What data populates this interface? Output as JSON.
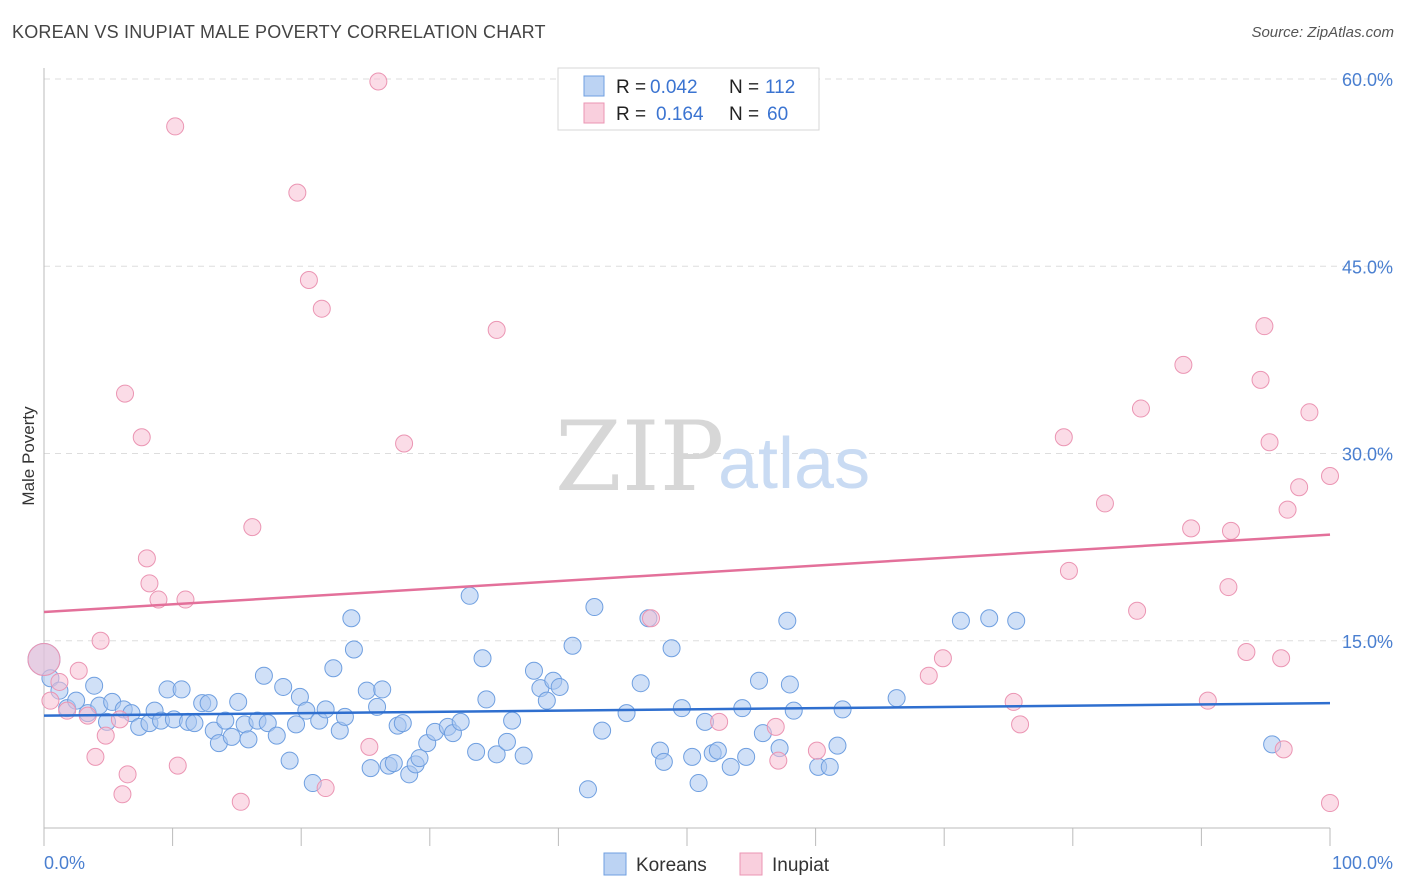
{
  "header": {
    "title": "KOREAN VS INUPIAT MALE POVERTY CORRELATION CHART",
    "source": "Source: ZipAtlas.com"
  },
  "watermark": {
    "zip": "ZIP",
    "atlas": "atlas"
  },
  "colors": {
    "koreans_fill": "#a9c6f0",
    "koreans_stroke": "#6f9fe0",
    "koreans_line": "#2f6fcf",
    "inupiat_fill": "#f7c0d3",
    "inupiat_stroke": "#eb95b3",
    "inupiat_line": "#e3709a",
    "tick_text": "#4a7fd0",
    "grid": "#dddddd"
  },
  "legend": {
    "rows": [
      {
        "r_label": "R =",
        "r_value": "0.042",
        "n_label": "N =",
        "n_value": "112"
      },
      {
        "r_label": "R =",
        "r_value": "0.164",
        "n_label": "N =",
        "n_value": "60"
      }
    ]
  },
  "bottom_legend": {
    "koreans": "Koreans",
    "inupiat": "Inupiat"
  },
  "chart_data": {
    "type": "scatter",
    "title": "KOREAN VS INUPIAT MALE POVERTY CORRELATION CHART",
    "xlabel": "",
    "ylabel": "Male Poverty",
    "xlim": [
      0,
      100
    ],
    "ylim": [
      0,
      60
    ],
    "x_tick_labels": {
      "min": "0.0%",
      "max": "100.0%"
    },
    "y_ticks": [
      15,
      30,
      45,
      60
    ],
    "y_tick_labels": [
      "15.0%",
      "30.0%",
      "45.0%",
      "60.0%"
    ],
    "grid": true,
    "series": [
      {
        "name": "Koreans",
        "R": 0.042,
        "N": 112,
        "trend": {
          "x": [
            0,
            100
          ],
          "y": [
            9.0,
            10.0
          ]
        },
        "points": [
          [
            0,
            13.5
          ],
          [
            0.5,
            12
          ],
          [
            1.2,
            11
          ],
          [
            1.8,
            9.6
          ],
          [
            2.5,
            10.2
          ],
          [
            3.4,
            9.2
          ],
          [
            3.9,
            11.4
          ],
          [
            4.3,
            9.8
          ],
          [
            4.9,
            8.5
          ],
          [
            5.3,
            10.1
          ],
          [
            6.2,
            9.5
          ],
          [
            6.8,
            9.2
          ],
          [
            7.4,
            8.1
          ],
          [
            8.2,
            8.4
          ],
          [
            8.6,
            9.4
          ],
          [
            9.1,
            8.6
          ],
          [
            9.6,
            11.1
          ],
          [
            10.1,
            8.7
          ],
          [
            10.7,
            11.1
          ],
          [
            11.2,
            8.5
          ],
          [
            11.7,
            8.4
          ],
          [
            12.3,
            10
          ],
          [
            12.8,
            10
          ],
          [
            13.2,
            7.8
          ],
          [
            13.6,
            6.8
          ],
          [
            14.1,
            8.6
          ],
          [
            14.6,
            7.3
          ],
          [
            15.1,
            10.1
          ],
          [
            15.6,
            8.3
          ],
          [
            15.9,
            7.1
          ],
          [
            16.6,
            8.6
          ],
          [
            17.1,
            12.2
          ],
          [
            17.4,
            8.4
          ],
          [
            18.1,
            7.4
          ],
          [
            18.6,
            11.3
          ],
          [
            19.1,
            5.4
          ],
          [
            19.6,
            8.3
          ],
          [
            19.9,
            10.5
          ],
          [
            20.4,
            9.4
          ],
          [
            20.9,
            3.6
          ],
          [
            21.4,
            8.6
          ],
          [
            21.9,
            9.5
          ],
          [
            22.5,
            12.8
          ],
          [
            23.0,
            7.8
          ],
          [
            23.4,
            8.9
          ],
          [
            23.9,
            16.8
          ],
          [
            24.1,
            14.3
          ],
          [
            25.1,
            11.0
          ],
          [
            25.4,
            4.8
          ],
          [
            25.9,
            9.7
          ],
          [
            26.3,
            11.1
          ],
          [
            26.8,
            5.0
          ],
          [
            27.2,
            5.2
          ],
          [
            27.5,
            8.2
          ],
          [
            27.9,
            8.4
          ],
          [
            28.4,
            4.3
          ],
          [
            28.9,
            5.1
          ],
          [
            29.2,
            5.6
          ],
          [
            29.8,
            6.8
          ],
          [
            30.4,
            7.7
          ],
          [
            31.4,
            8.1
          ],
          [
            31.8,
            7.6
          ],
          [
            32.4,
            8.5
          ],
          [
            33.1,
            18.6
          ],
          [
            33.6,
            6.1
          ],
          [
            34.1,
            13.6
          ],
          [
            34.4,
            10.3
          ],
          [
            35.2,
            5.9
          ],
          [
            36.0,
            6.9
          ],
          [
            36.4,
            8.6
          ],
          [
            37.3,
            5.8
          ],
          [
            38.1,
            12.6
          ],
          [
            38.6,
            11.2
          ],
          [
            39.1,
            10.2
          ],
          [
            39.6,
            11.8
          ],
          [
            40.1,
            11.3
          ],
          [
            41.1,
            14.6
          ],
          [
            42.3,
            3.1
          ],
          [
            42.8,
            17.7
          ],
          [
            43.4,
            7.8
          ],
          [
            45.3,
            9.2
          ],
          [
            46.4,
            11.6
          ],
          [
            47.0,
            16.8
          ],
          [
            47.9,
            6.2
          ],
          [
            48.2,
            5.3
          ],
          [
            48.8,
            14.4
          ],
          [
            49.6,
            9.6
          ],
          [
            50.4,
            5.7
          ],
          [
            50.9,
            3.6
          ],
          [
            51.4,
            8.5
          ],
          [
            52.0,
            6.0
          ],
          [
            52.4,
            6.2
          ],
          [
            53.4,
            4.9
          ],
          [
            54.3,
            9.6
          ],
          [
            54.6,
            5.7
          ],
          [
            55.6,
            11.8
          ],
          [
            55.9,
            7.6
          ],
          [
            57.2,
            6.4
          ],
          [
            57.8,
            16.6
          ],
          [
            58.0,
            11.5
          ],
          [
            58.3,
            9.4
          ],
          [
            60.2,
            4.9
          ],
          [
            61.1,
            4.9
          ],
          [
            61.7,
            6.6
          ],
          [
            62.1,
            9.5
          ],
          [
            66.3,
            10.4
          ],
          [
            71.3,
            16.6
          ],
          [
            73.5,
            16.8
          ],
          [
            75.6,
            16.6
          ],
          [
            95.5,
            6.7
          ]
        ]
      },
      {
        "name": "Inupiat",
        "R": 0.164,
        "N": 60,
        "trend": {
          "x": [
            0,
            100
          ],
          "y": [
            17.3,
            23.5
          ]
        },
        "points": [
          [
            0,
            13.5
          ],
          [
            0.5,
            10.2
          ],
          [
            1.2,
            11.7
          ],
          [
            1.8,
            9.4
          ],
          [
            2.7,
            12.6
          ],
          [
            3.4,
            9.0
          ],
          [
            4,
            5.7
          ],
          [
            4.4,
            15
          ],
          [
            4.8,
            7.4
          ],
          [
            5.9,
            8.7
          ],
          [
            6.1,
            2.7
          ],
          [
            6.3,
            34.8
          ],
          [
            6.5,
            4.3
          ],
          [
            7.6,
            31.3
          ],
          [
            8.0,
            21.6
          ],
          [
            8.2,
            19.6
          ],
          [
            8.9,
            18.3
          ],
          [
            10.2,
            56.2
          ],
          [
            10.4,
            5.0
          ],
          [
            11,
            18.3
          ],
          [
            15.3,
            2.1
          ],
          [
            16.2,
            24.1
          ],
          [
            19.7,
            50.9
          ],
          [
            20.6,
            43.9
          ],
          [
            21.6,
            41.6
          ],
          [
            21.9,
            3.2
          ],
          [
            25.3,
            6.5
          ],
          [
            26.0,
            59.8
          ],
          [
            28.0,
            30.8
          ],
          [
            35.2,
            39.9
          ],
          [
            47.2,
            16.8
          ],
          [
            52.5,
            8.5
          ],
          [
            56.9,
            8.1
          ],
          [
            57.1,
            5.4
          ],
          [
            60.1,
            6.2
          ],
          [
            68.8,
            12.2
          ],
          [
            69.9,
            13.6
          ],
          [
            75.4,
            10.1
          ],
          [
            75.9,
            8.3
          ],
          [
            79.3,
            31.3
          ],
          [
            79.7,
            20.6
          ],
          [
            82.5,
            26
          ],
          [
            85.0,
            17.4
          ],
          [
            85.3,
            33.6
          ],
          [
            88.6,
            37.1
          ],
          [
            89.2,
            24
          ],
          [
            90.5,
            10.2
          ],
          [
            92.1,
            19.3
          ],
          [
            92.3,
            23.8
          ],
          [
            93.5,
            14.1
          ],
          [
            94.6,
            35.9
          ],
          [
            94.9,
            40.2
          ],
          [
            95.3,
            30.9
          ],
          [
            96.2,
            13.6
          ],
          [
            96.4,
            6.3
          ],
          [
            96.7,
            25.5
          ],
          [
            97.6,
            27.3
          ],
          [
            98.4,
            33.3
          ],
          [
            100,
            28.2
          ],
          [
            100,
            2
          ]
        ]
      }
    ]
  }
}
